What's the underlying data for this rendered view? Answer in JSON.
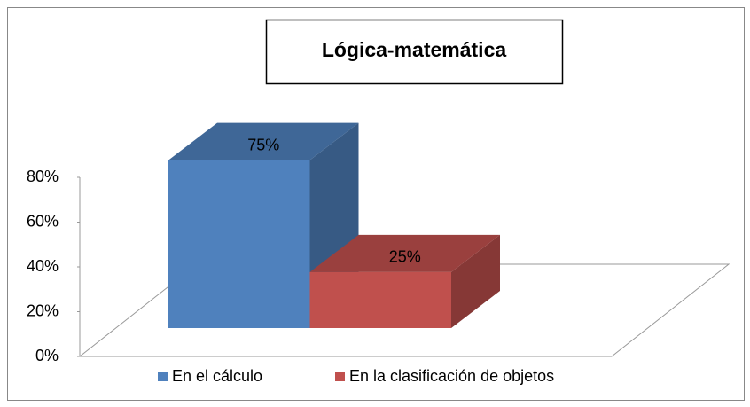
{
  "chart_data": {
    "type": "bar3d",
    "title": "Lógica-matemática",
    "categories": [
      "En el cálculo",
      "En la clasificación de objetos"
    ],
    "values": [
      75,
      25
    ],
    "value_labels": [
      "75%",
      "25%"
    ],
    "colors": [
      "#4f81bd",
      "#c0504d"
    ],
    "ylim": [
      0,
      80
    ],
    "yticks": [
      {
        "value": 0,
        "label": "0%"
      },
      {
        "value": 20,
        "label": "20%"
      },
      {
        "value": 40,
        "label": "40%"
      },
      {
        "value": 60,
        "label": "60%"
      },
      {
        "value": 80,
        "label": "80%"
      }
    ]
  }
}
